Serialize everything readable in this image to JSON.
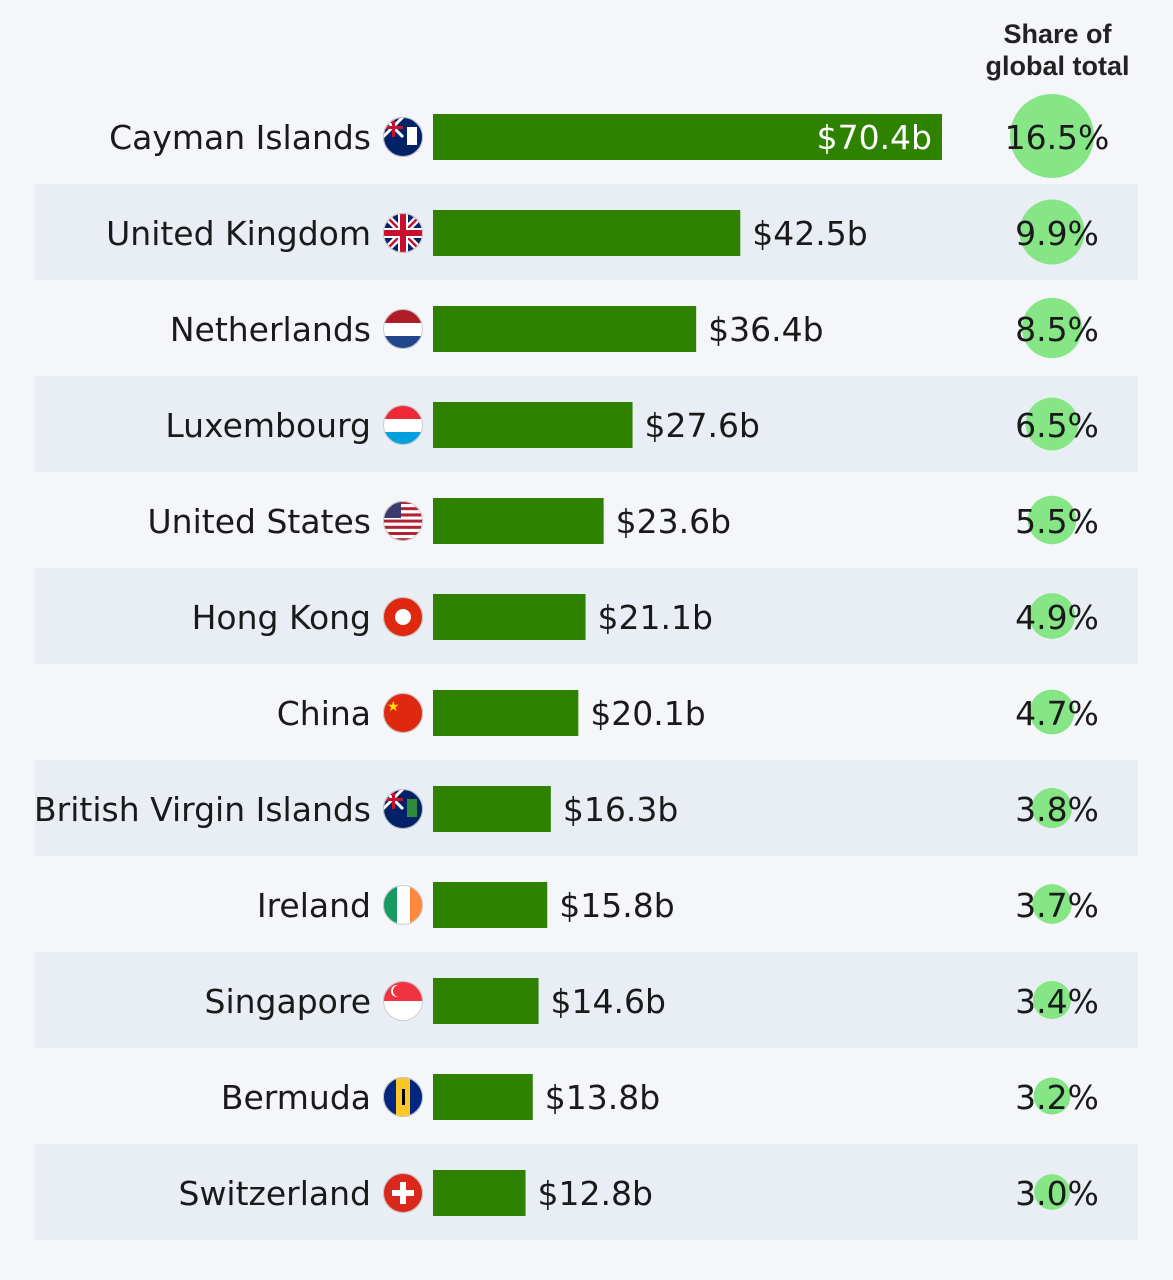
{
  "chart_data": {
    "type": "bar",
    "orientation": "horizontal",
    "column_header": "Share of global total",
    "value_prefix": "$",
    "value_suffix": "b",
    "categories": [
      "Cayman Islands",
      "United Kingdom",
      "Netherlands",
      "Luxembourg",
      "United States",
      "Hong Kong",
      "China",
      "British Virgin Islands",
      "Ireland",
      "Singapore",
      "Bermuda",
      "Switzerland"
    ],
    "values": [
      70.4,
      42.5,
      36.4,
      27.6,
      23.6,
      21.1,
      20.1,
      16.3,
      15.8,
      14.6,
      13.8,
      12.8
    ],
    "value_labels": [
      "$70.4b",
      "$42.5b",
      "$36.4b",
      "$27.6b",
      "$23.6b",
      "$21.1b",
      "$20.1b",
      "$16.3b",
      "$15.8b",
      "$14.6b",
      "$13.8b",
      "$12.8b"
    ],
    "share_values": [
      16.5,
      9.9,
      8.5,
      6.5,
      5.5,
      4.9,
      4.7,
      3.8,
      3.7,
      3.4,
      3.2,
      3.0
    ],
    "share_labels": [
      "16.5%",
      "9.9%",
      "8.5%",
      "6.5%",
      "5.5%",
      "4.9%",
      "4.7%",
      "3.8%",
      "3.7%",
      "3.4%",
      "3.2%",
      "3.0%"
    ],
    "flags": [
      "cayman-islands-flag-icon",
      "united-kingdom-flag-icon",
      "netherlands-flag-icon",
      "luxembourg-flag-icon",
      "united-states-flag-icon",
      "hong-kong-flag-icon",
      "china-flag-icon",
      "british-virgin-islands-flag-icon",
      "ireland-flag-icon",
      "singapore-flag-icon",
      "bermuda-flag-icon",
      "switzerland-flag-icon"
    ],
    "colors": {
      "bar": "#2e8200",
      "bubble": "#86e686",
      "row_alt": "#e9eef5",
      "background": "#f4f6fa"
    }
  }
}
